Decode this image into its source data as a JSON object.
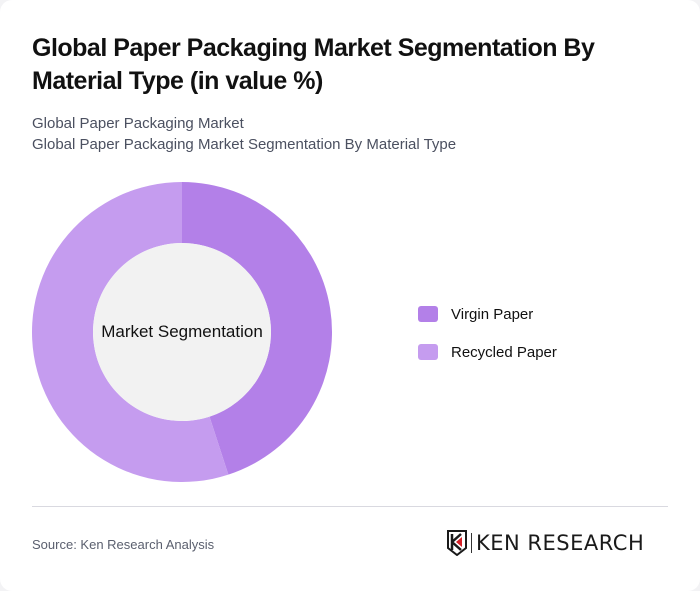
{
  "header": {
    "title": "Global Paper Packaging Market Segmentation By Material Type (in value %)",
    "subtitle_line1": "Global Paper Packaging Market",
    "subtitle_line2": "Global Paper Packaging Market Segmentation By Material Type"
  },
  "chart": {
    "center_label": "Market Segmentation"
  },
  "legend": {
    "items": [
      {
        "label": "Virgin Paper",
        "color": "#b380e8"
      },
      {
        "label": "Recycled Paper",
        "color": "#c59cef"
      }
    ]
  },
  "footer": {
    "source": "Source: Ken Research Analysis",
    "logo_text": "KEN RESEARCH"
  },
  "colors": {
    "inner_circle": "#f2f2f2",
    "logo_accent": "#d62128"
  },
  "chart_data": {
    "type": "pie",
    "subtype": "donut",
    "title": "Global Paper Packaging Market Segmentation By Material Type (in value %)",
    "center_label": "Market Segmentation",
    "categories": [
      "Virgin Paper",
      "Recycled Paper"
    ],
    "values": [
      45,
      55
    ],
    "colors": [
      "#b380e8",
      "#c59cef"
    ],
    "legend_position": "right",
    "data_labels": false
  }
}
